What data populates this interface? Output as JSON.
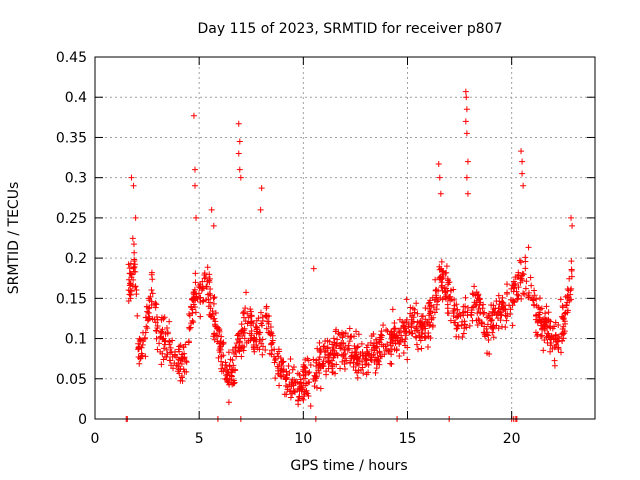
{
  "chart_data": {
    "type": "scatter",
    "title": "Day 115 of 2023, SRMTID for receiver p807",
    "xlabel": "GPS time / hours",
    "ylabel": "SRMTID / TECUs",
    "xlim": [
      0,
      24
    ],
    "ylim": [
      0,
      0.45
    ],
    "x_ticks": [
      0,
      5,
      10,
      15,
      20
    ],
    "x_tick_labels": [
      "0",
      "5",
      "10",
      "15",
      "20"
    ],
    "y_ticks": [
      0,
      0.05,
      0.1,
      0.15,
      0.2,
      0.25,
      0.3,
      0.35,
      0.4,
      0.45
    ],
    "y_tick_labels": [
      "0",
      "0.05",
      "0.1",
      "0.15",
      "0.2",
      "0.25",
      "0.3",
      "0.35",
      "0.4",
      "0.45"
    ],
    "grid": true,
    "marker": "+",
    "series_color": "#ff0000",
    "trend": [
      {
        "x": 1.6,
        "y": 0.16
      },
      {
        "x": 1.9,
        "y": 0.2
      },
      {
        "x": 2.1,
        "y": 0.08
      },
      {
        "x": 2.4,
        "y": 0.1
      },
      {
        "x": 2.7,
        "y": 0.16
      },
      {
        "x": 3.0,
        "y": 0.11
      },
      {
        "x": 3.5,
        "y": 0.09
      },
      {
        "x": 4.0,
        "y": 0.07
      },
      {
        "x": 4.4,
        "y": 0.08
      },
      {
        "x": 4.7,
        "y": 0.15
      },
      {
        "x": 5.0,
        "y": 0.16
      },
      {
        "x": 5.5,
        "y": 0.16
      },
      {
        "x": 6.0,
        "y": 0.09
      },
      {
        "x": 6.4,
        "y": 0.05
      },
      {
        "x": 6.8,
        "y": 0.08
      },
      {
        "x": 7.2,
        "y": 0.12
      },
      {
        "x": 7.8,
        "y": 0.1
      },
      {
        "x": 8.3,
        "y": 0.12
      },
      {
        "x": 8.7,
        "y": 0.07
      },
      {
        "x": 9.2,
        "y": 0.05
      },
      {
        "x": 9.7,
        "y": 0.04
      },
      {
        "x": 10.2,
        "y": 0.05
      },
      {
        "x": 10.8,
        "y": 0.07
      },
      {
        "x": 11.3,
        "y": 0.08
      },
      {
        "x": 11.8,
        "y": 0.09
      },
      {
        "x": 12.3,
        "y": 0.08
      },
      {
        "x": 12.8,
        "y": 0.07
      },
      {
        "x": 13.3,
        "y": 0.08
      },
      {
        "x": 13.8,
        "y": 0.09
      },
      {
        "x": 14.3,
        "y": 0.1
      },
      {
        "x": 14.8,
        "y": 0.11
      },
      {
        "x": 15.3,
        "y": 0.12
      },
      {
        "x": 15.8,
        "y": 0.11
      },
      {
        "x": 16.2,
        "y": 0.13
      },
      {
        "x": 16.6,
        "y": 0.18
      },
      {
        "x": 17.0,
        "y": 0.16
      },
      {
        "x": 17.4,
        "y": 0.12
      },
      {
        "x": 17.9,
        "y": 0.13
      },
      {
        "x": 18.3,
        "y": 0.15
      },
      {
        "x": 18.8,
        "y": 0.11
      },
      {
        "x": 19.3,
        "y": 0.13
      },
      {
        "x": 19.8,
        "y": 0.14
      },
      {
        "x": 20.3,
        "y": 0.17
      },
      {
        "x": 20.7,
        "y": 0.18
      },
      {
        "x": 21.2,
        "y": 0.13
      },
      {
        "x": 21.7,
        "y": 0.11
      },
      {
        "x": 22.1,
        "y": 0.09
      },
      {
        "x": 22.5,
        "y": 0.12
      },
      {
        "x": 22.9,
        "y": 0.18
      }
    ],
    "spikes": [
      {
        "x": 1.75,
        "y": 0.3
      },
      {
        "x": 1.85,
        "y": 0.29
      },
      {
        "x": 1.95,
        "y": 0.25
      },
      {
        "x": 4.75,
        "y": 0.377
      },
      {
        "x": 4.8,
        "y": 0.31
      },
      {
        "x": 4.8,
        "y": 0.29
      },
      {
        "x": 4.85,
        "y": 0.25
      },
      {
        "x": 5.6,
        "y": 0.26
      },
      {
        "x": 5.7,
        "y": 0.24
      },
      {
        "x": 6.9,
        "y": 0.367
      },
      {
        "x": 6.95,
        "y": 0.345
      },
      {
        "x": 6.9,
        "y": 0.33
      },
      {
        "x": 6.95,
        "y": 0.31
      },
      {
        "x": 7.0,
        "y": 0.3
      },
      {
        "x": 8.0,
        "y": 0.287
      },
      {
        "x": 7.95,
        "y": 0.26
      },
      {
        "x": 10.5,
        "y": 0.187
      },
      {
        "x": 16.5,
        "y": 0.317
      },
      {
        "x": 16.55,
        "y": 0.3
      },
      {
        "x": 16.6,
        "y": 0.28
      },
      {
        "x": 17.8,
        "y": 0.407
      },
      {
        "x": 17.82,
        "y": 0.4
      },
      {
        "x": 17.85,
        "y": 0.385
      },
      {
        "x": 17.8,
        "y": 0.37
      },
      {
        "x": 17.85,
        "y": 0.355
      },
      {
        "x": 17.9,
        "y": 0.32
      },
      {
        "x": 17.85,
        "y": 0.3
      },
      {
        "x": 17.9,
        "y": 0.28
      },
      {
        "x": 20.45,
        "y": 0.333
      },
      {
        "x": 20.5,
        "y": 0.32
      },
      {
        "x": 20.5,
        "y": 0.305
      },
      {
        "x": 20.55,
        "y": 0.29
      },
      {
        "x": 22.85,
        "y": 0.25
      },
      {
        "x": 22.9,
        "y": 0.24
      }
    ],
    "baseline_zero_x": [
      1.5,
      1.55,
      5.9,
      7.0,
      10.6,
      14.5,
      17.0,
      20.0,
      20.1,
      20.2,
      20.25
    ]
  }
}
